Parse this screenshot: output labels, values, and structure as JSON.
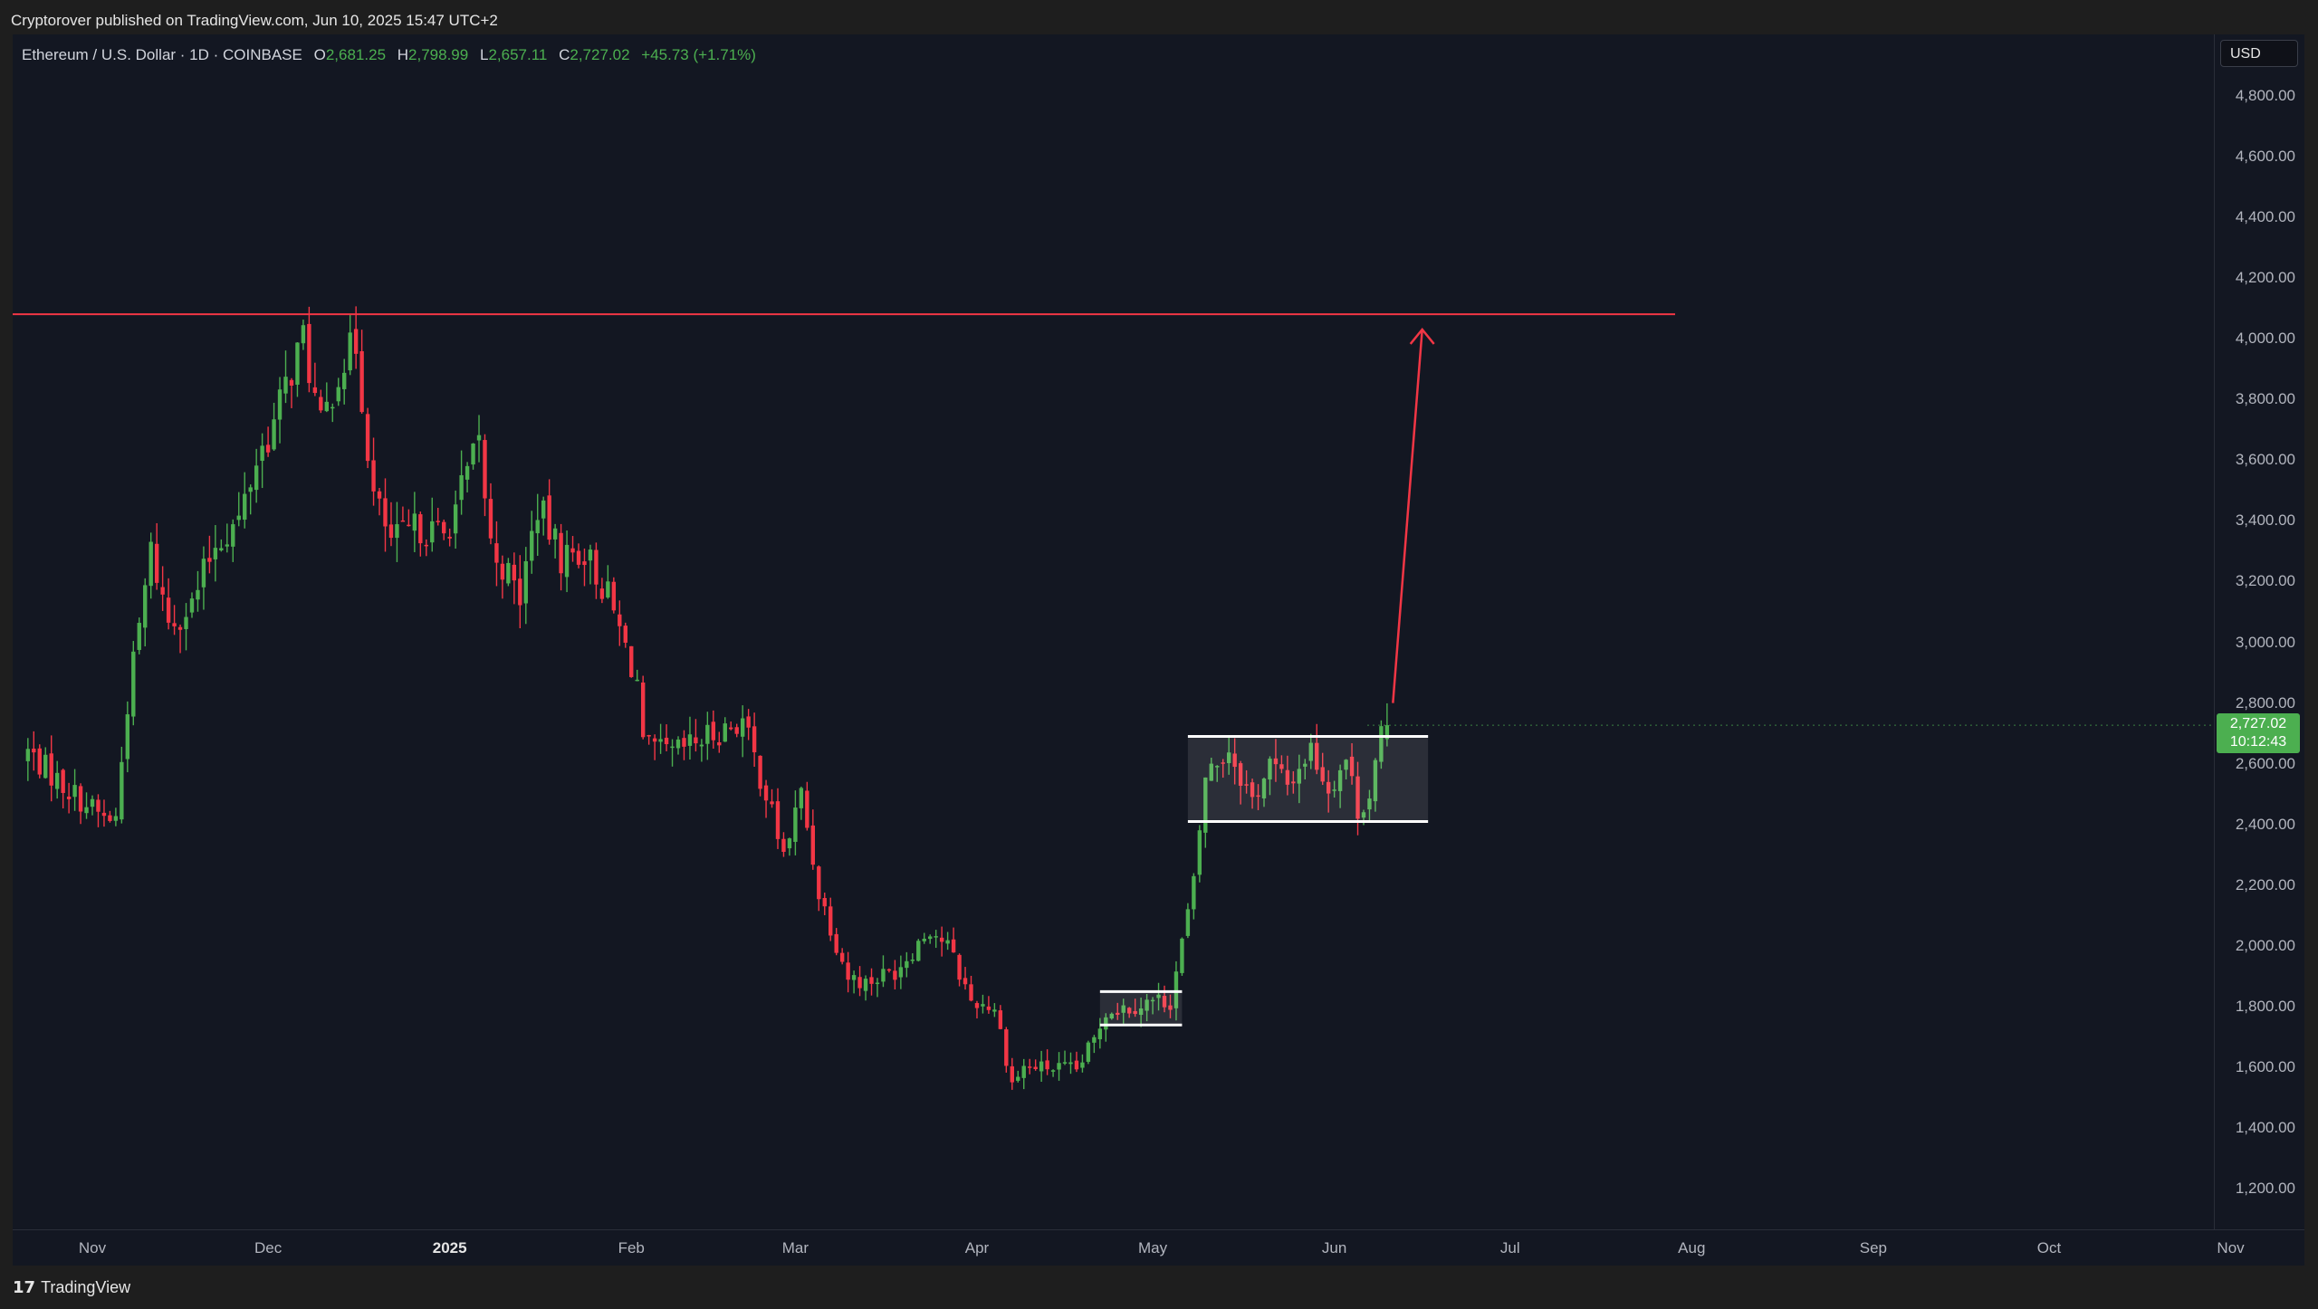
{
  "header": {
    "published": "Cryptorover published on TradingView.com, Jun 10, 2025 15:47 UTC+2"
  },
  "legend": {
    "symbol": "Ethereum / U.S. Dollar · 1D · COINBASE",
    "o_label": "O",
    "o_value": "2,681.25",
    "h_label": "H",
    "h_value": "2,798.99",
    "l_label": "L",
    "l_value": "2,657.11",
    "c_label": "C",
    "c_value": "2,727.02",
    "change": "+45.73 (+1.71%)"
  },
  "currency": "USD",
  "price_badge": {
    "price": "2,727.02",
    "countdown": "10:12:43"
  },
  "footer": {
    "brand": "TradingView"
  },
  "colors": {
    "up": "#4caf50",
    "down": "#f23645",
    "annotation": "#f23645",
    "box": "#ffffff"
  },
  "chart_data": {
    "type": "candlestick",
    "x_ticks": [
      "Nov",
      "Dec",
      "2025",
      "Feb",
      "Mar",
      "Apr",
      "May",
      "Jun",
      "Jul",
      "Aug",
      "Sep",
      "Oct",
      "Nov"
    ],
    "y_ticks": [
      "4,800.00",
      "4,600.00",
      "4,400.00",
      "4,200.00",
      "4,000.00",
      "3,800.00",
      "3,600.00",
      "3,400.00",
      "3,200.00",
      "3,000.00",
      "2,800.00",
      "2,600.00",
      "2,400.00",
      "2,200.00",
      "2,000.00",
      "1,800.00",
      "1,600.00",
      "1,400.00",
      "1,200.00"
    ],
    "ylim": [
      1100,
      4900
    ],
    "last_price": 2727.02,
    "close_path": [
      [
        "2024-10-21",
        2640
      ],
      [
        "2024-10-27",
        2530
      ],
      [
        "2024-11-03",
        2420
      ],
      [
        "2024-11-05",
        2420
      ],
      [
        "2024-11-07",
        2800
      ],
      [
        "2024-11-11",
        3300
      ],
      [
        "2024-11-14",
        3070
      ],
      [
        "2024-11-18",
        3120
      ],
      [
        "2024-11-22",
        3330
      ],
      [
        "2024-11-26",
        3400
      ],
      [
        "2024-11-29",
        3600
      ],
      [
        "2024-12-02",
        3720
      ],
      [
        "2024-12-05",
        3900
      ],
      [
        "2024-12-07",
        4000
      ],
      [
        "2024-12-10",
        3700
      ],
      [
        "2024-12-13",
        3900
      ],
      [
        "2024-12-16",
        3980
      ],
      [
        "2024-12-19",
        3480
      ],
      [
        "2024-12-22",
        3330
      ],
      [
        "2024-12-27",
        3380
      ],
      [
        "2024-12-31",
        3350
      ],
      [
        "2025-01-06",
        3650
      ],
      [
        "2025-01-08",
        3320
      ],
      [
        "2025-01-13",
        3150
      ],
      [
        "2025-01-16",
        3450
      ],
      [
        "2025-01-20",
        3280
      ],
      [
        "2025-01-24",
        3300
      ],
      [
        "2025-01-28",
        3150
      ],
      [
        "2025-02-02",
        2870
      ],
      [
        "2025-02-03",
        2650
      ],
      [
        "2025-02-08",
        2630
      ],
      [
        "2025-02-15",
        2700
      ],
      [
        "2025-02-20",
        2740
      ],
      [
        "2025-02-24",
        2500
      ],
      [
        "2025-02-27",
        2300
      ],
      [
        "2025-03-02",
        2500
      ],
      [
        "2025-03-05",
        2180
      ],
      [
        "2025-03-10",
        1900
      ],
      [
        "2025-03-13",
        1880
      ],
      [
        "2025-03-18",
        1920
      ],
      [
        "2025-03-24",
        2060
      ],
      [
        "2025-03-27",
        2000
      ],
      [
        "2025-03-31",
        1820
      ],
      [
        "2025-04-04",
        1800
      ],
      [
        "2025-04-07",
        1550
      ],
      [
        "2025-04-09",
        1600
      ],
      [
        "2025-04-13",
        1600
      ],
      [
        "2025-04-18",
        1590
      ],
      [
        "2025-04-21",
        1690
      ],
      [
        "2025-04-23",
        1790
      ],
      [
        "2025-04-27",
        1800
      ],
      [
        "2025-05-01",
        1820
      ],
      [
        "2025-05-04",
        1820
      ],
      [
        "2025-05-08",
        2200
      ],
      [
        "2025-05-10",
        2560
      ],
      [
        "2025-05-14",
        2650
      ],
      [
        "2025-05-18",
        2480
      ],
      [
        "2025-05-21",
        2600
      ],
      [
        "2025-05-24",
        2530
      ],
      [
        "2025-05-28",
        2650
      ],
      [
        "2025-05-31",
        2520
      ],
      [
        "2025-06-03",
        2620
      ],
      [
        "2025-06-05",
        2450
      ],
      [
        "2025-06-07",
        2500
      ],
      [
        "2025-06-09",
        2681
      ],
      [
        "2025-06-10",
        2727
      ]
    ],
    "annotations": {
      "resistance": 4080,
      "arrow": {
        "from": [
          "2025-06-11",
          2800
        ],
        "to": [
          "2025-06-16",
          4030
        ]
      },
      "ranges": [
        {
          "from": "2025-04-22",
          "to": "2025-05-06",
          "low": 1740,
          "high": 1850
        },
        {
          "from": "2025-05-07",
          "to": "2025-06-17",
          "low": 2410,
          "high": 2690
        }
      ]
    }
  }
}
